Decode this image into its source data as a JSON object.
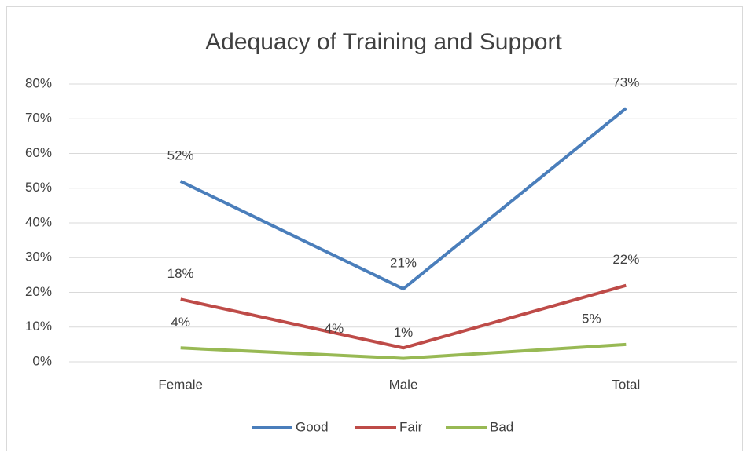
{
  "chart_data": {
    "type": "line",
    "title": "Adequacy of Training and Support",
    "categories": [
      "Female",
      "Male",
      "Total"
    ],
    "series": [
      {
        "name": "Good",
        "color": "#4a7ebb",
        "values": [
          52,
          21,
          73
        ],
        "value_labels": [
          "52%",
          "21%",
          "73%"
        ]
      },
      {
        "name": "Fair",
        "color": "#be4b48",
        "values": [
          18,
          4,
          22
        ],
        "value_labels": [
          "18%",
          "4%",
          "22%"
        ]
      },
      {
        "name": "Bad",
        "color": "#98b954",
        "values": [
          4,
          1,
          5
        ],
        "value_labels": [
          "4%",
          "1%",
          "5%"
        ]
      }
    ],
    "ylim": [
      0,
      80
    ],
    "yticks": [
      {
        "value": 0,
        "label": "0%"
      },
      {
        "value": 10,
        "label": "10%"
      },
      {
        "value": 20,
        "label": "20%"
      },
      {
        "value": 30,
        "label": "30%"
      },
      {
        "value": 40,
        "label": "40%"
      },
      {
        "value": 50,
        "label": "50%"
      },
      {
        "value": 60,
        "label": "60%"
      },
      {
        "value": 70,
        "label": "70%"
      },
      {
        "value": 80,
        "label": "80%"
      }
    ],
    "grid": true,
    "legend": "bottom"
  }
}
